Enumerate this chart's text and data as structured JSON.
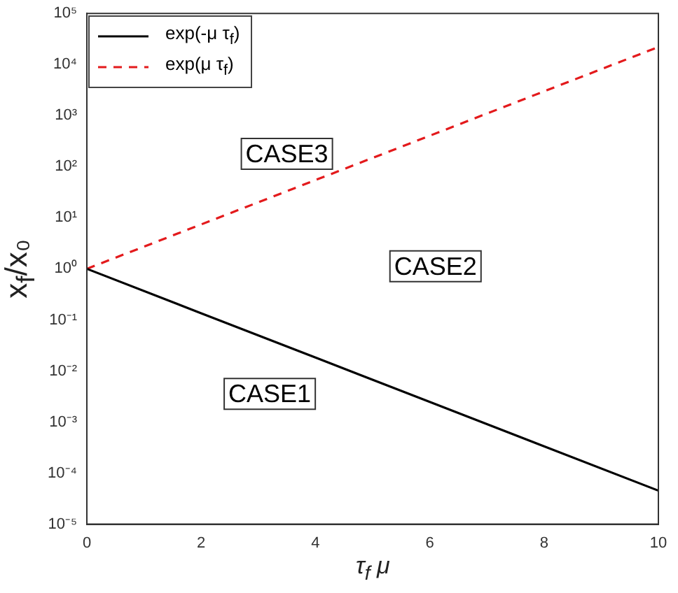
{
  "chart_data": {
    "type": "line",
    "xlabel": "τ$_{f}$ μ",
    "ylabel": "x$_{f}$/x₀",
    "x": [
      0,
      2,
      4,
      6,
      8,
      10
    ],
    "series": [
      {
        "name": "exp(-μ τ$_{f}$)",
        "color": "#000000",
        "line_style": "solid",
        "values": [
          1,
          0.135,
          0.0183,
          0.00248,
          0.000335,
          4.54e-05
        ]
      },
      {
        "name": "exp(μ τ$_{f}$)",
        "color": "#e31a1c",
        "line_style": "dashed",
        "values": [
          1,
          7.39,
          54.6,
          403,
          2981,
          22026
        ]
      }
    ],
    "log": "y",
    "marker": "none",
    "legend": "top left",
    "grid": false,
    "xlim": [
      0,
      10
    ],
    "xticks": [
      0,
      2,
      4,
      6,
      8,
      10
    ],
    "ylim": [
      1e-05,
      100000
    ],
    "yticks": [
      {
        "value": 1e-05,
        "label": "10⁻⁵"
      },
      {
        "value": 0.0001,
        "label": "10⁻⁴"
      },
      {
        "value": 0.001,
        "label": "10⁻³"
      },
      {
        "value": 0.01,
        "label": "10⁻²"
      },
      {
        "value": 0.1,
        "label": "10⁻¹"
      },
      {
        "value": 1,
        "label": "10⁰"
      },
      {
        "value": 10,
        "label": "10¹"
      },
      {
        "value": 100,
        "label": "10²"
      },
      {
        "value": 1000,
        "label": "10³"
      },
      {
        "value": 10000,
        "label": "10⁴"
      },
      {
        "value": 100000,
        "label": "10⁵"
      }
    ],
    "annotations": [
      "CASE3",
      "CASE2",
      "CASE1"
    ]
  }
}
